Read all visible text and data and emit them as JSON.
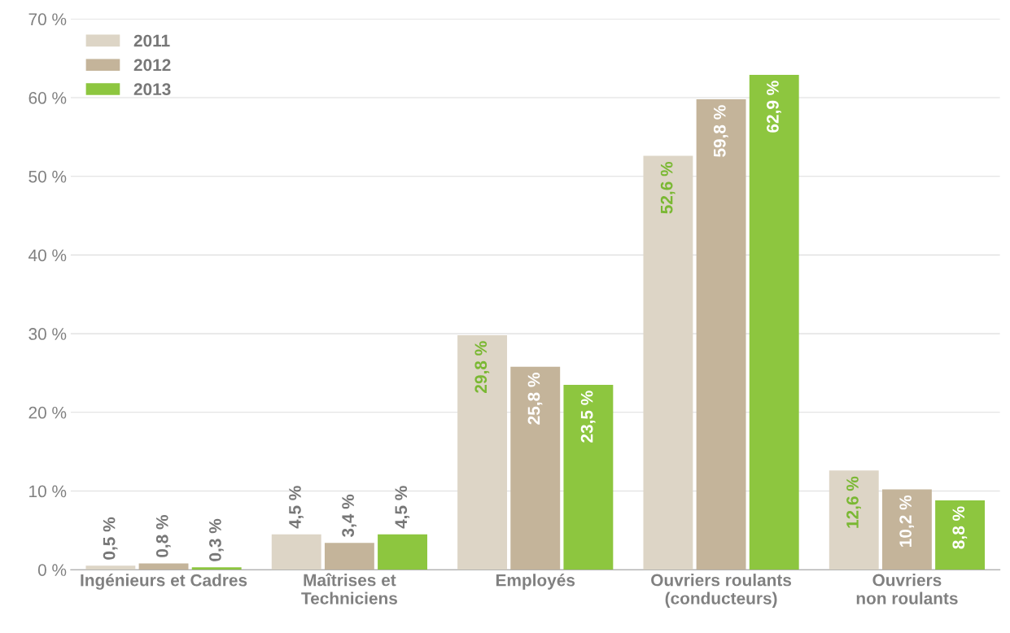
{
  "chart_data": {
    "type": "bar",
    "categories": [
      "Ingénieurs et Cadres",
      "Maîtrises et\nTechniciens",
      "Employés",
      "Ouvriers roulants\n(conducteurs)",
      "Ouvriers\nnon roulants"
    ],
    "series": [
      {
        "name": "2011",
        "color": "#ddd5c6",
        "values": [
          0.5,
          4.5,
          29.8,
          52.6,
          12.6
        ],
        "value_labels": [
          "0,5 %",
          "4,5 %",
          "29,8 %",
          "52,6 %",
          "12,6 %"
        ]
      },
      {
        "name": "2012",
        "color": "#c4b49a",
        "values": [
          0.8,
          3.4,
          25.8,
          59.8,
          10.2
        ],
        "value_labels": [
          "0,8 %",
          "3,4 %",
          "25,8 %",
          "59,8 %",
          "10,2 %"
        ]
      },
      {
        "name": "2013",
        "color": "#8dc63f",
        "values": [
          0.3,
          4.5,
          23.5,
          62.9,
          8.8
        ],
        "value_labels": [
          "0,3 %",
          "4,5 %",
          "23,5 %",
          "62,9 %",
          "8,8 %"
        ]
      }
    ],
    "ylim": [
      0,
      70
    ],
    "yticks": [
      {
        "value": 0,
        "label": "0 %"
      },
      {
        "value": 10,
        "label": "10 %"
      },
      {
        "value": 20,
        "label": "20 %"
      },
      {
        "value": 30,
        "label": "30 %"
      },
      {
        "value": 40,
        "label": "40 %"
      },
      {
        "value": 50,
        "label": "50 %"
      },
      {
        "value": 60,
        "label": "60 %"
      },
      {
        "value": 70,
        "label": "70 %"
      }
    ],
    "grid": "y",
    "legend": "top left"
  }
}
